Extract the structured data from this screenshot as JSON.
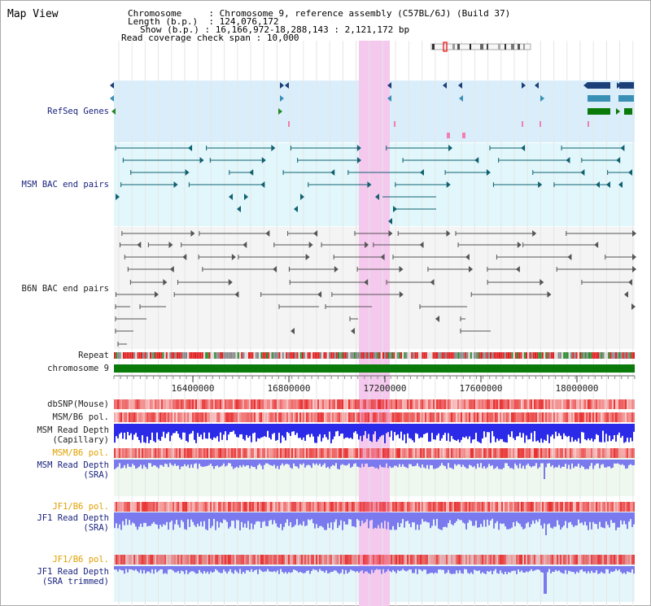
{
  "view": {
    "title": "Map View",
    "info": {
      "chromosome_label": "Chromosome",
      "chromosome_value": ": Chromosome 9, reference assembly (C57BL/6J) (Build 37)",
      "length_label": "Length (b.p.)",
      "length_value": ": 124,076,172",
      "show_label": "Show (b.p.)",
      "show_value": ": 16,166,972-18,288,143 : 2,121,172 bp",
      "read_span_label": "Read coverage check span",
      "read_span_value": ": 10,000"
    }
  },
  "tracks": {
    "refseq": "RefSeq Genes",
    "msm_bac": "MSM BAC end pairs",
    "b6n_bac": "B6N BAC end pairs",
    "repeat": "Repeat",
    "chromosome": "chromosome 9",
    "dbsnp": "dbSNP(Mouse)",
    "msm_b6_pol_1": "MSM/B6 pol.",
    "msm_read_depth_cap_1": "MSM Read Depth",
    "msm_read_depth_cap_2": "(Capillary)",
    "msm_b6_pol_2": "MSM/B6 pol.",
    "msm_read_depth_sra_1": "MSM Read Depth",
    "msm_read_depth_sra_2": "(SRA)",
    "jf1_b6_pol_1": "JF1/B6 pol.",
    "jf1_read_depth_1": "JF1 Read Depth",
    "jf1_read_depth_2": "(SRA)",
    "jf1_b6_pol_2": "JF1/B6 pol.",
    "jf1_read_depth_trim_1": "JF1 Read Depth",
    "jf1_read_depth_trim_2": "(SRA trimmed)"
  },
  "axis": {
    "ticks": [
      "16400000",
      "16800000",
      "17200000",
      "17600000",
      "18000000"
    ]
  },
  "colors": {
    "highlight": "#f5c8ee",
    "refseq_bg": "#d9eefa",
    "msm_bg": "#e1f7fb",
    "b6n_bg": "#f4f4f4",
    "chromosome_bar": "#0a7a0a",
    "snp_red": "#e83030",
    "depth_blue": "#2a2ae8",
    "depth_light_blue": "#7a7aee",
    "label_navy": "#1a237e",
    "label_orange": "#e0a000"
  }
}
